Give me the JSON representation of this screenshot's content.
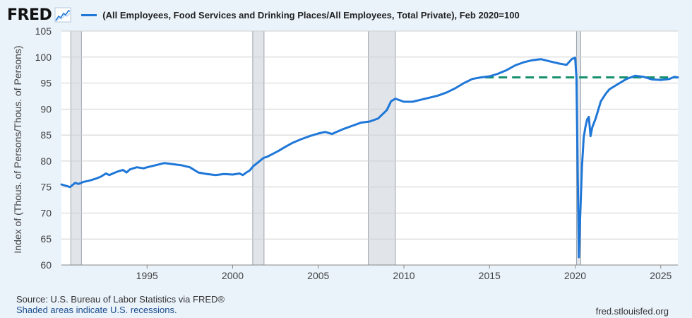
{
  "header": {
    "logo_text": "FRED",
    "logo_icon": "trend-line-icon",
    "legend_label": "(All Employees, Food Services and Drinking Places/All Employees, Total Private), Feb 2020=100"
  },
  "footer": {
    "source": "Source: U.S. Bureau of Labor Statistics via FRED®",
    "recession_note": "Shaded areas indicate U.S. recessions.",
    "site": "fred.stlouisfed.org"
  },
  "colors": {
    "line": "#1f77d8",
    "reference_line": "#16906d",
    "recession": "#e1e5ea",
    "recession_edge": "#9aa3ad",
    "grid": "#cfcfcf",
    "text": "#444444"
  },
  "chart_data": {
    "type": "line",
    "title": "",
    "ylabel": "Index of (Thous. of Persons/Thous. of Persons)",
    "xlabel": "",
    "xlim": [
      1990.0,
      2026.0
    ],
    "ylim": [
      60,
      105
    ],
    "yticks": [
      60,
      65,
      70,
      75,
      80,
      85,
      90,
      95,
      100,
      105
    ],
    "xticks": [
      1995,
      2000,
      2005,
      2010,
      2015,
      2020,
      2025
    ],
    "grid": true,
    "legend_position": "top",
    "recessions": [
      [
        1990.55,
        1991.17
      ],
      [
        2001.17,
        2001.83
      ],
      [
        2007.92,
        2009.5
      ],
      [
        2020.08,
        2020.33
      ]
    ],
    "reference_line": {
      "y": 96.1,
      "x_start": 2014.75,
      "x_end": 2026.0,
      "style": "dashed"
    },
    "series": [
      {
        "name": "(All Employees, Food Services and Drinking Places/All Employees, Total Private), Feb 2020=100",
        "x": [
          1990.0,
          1990.3,
          1990.5,
          1990.8,
          1991.0,
          1991.3,
          1991.6,
          1992.0,
          1992.3,
          1992.6,
          1992.8,
          1993.0,
          1993.3,
          1993.6,
          1993.8,
          1994.0,
          1994.4,
          1994.8,
          1995.0,
          1995.5,
          1996.0,
          1996.5,
          1997.0,
          1997.5,
          1998.0,
          1998.5,
          1999.0,
          1999.5,
          2000.0,
          2000.4,
          2000.6,
          2000.8,
          2001.0,
          2001.2,
          2001.5,
          2001.8,
          2002.0,
          2002.3,
          2002.7,
          2003.0,
          2003.5,
          2004.0,
          2004.5,
          2005.0,
          2005.4,
          2005.8,
          2006.0,
          2006.5,
          2007.0,
          2007.5,
          2008.0,
          2008.5,
          2009.0,
          2009.25,
          2009.5,
          2010.0,
          2010.5,
          2011.0,
          2011.5,
          2012.0,
          2012.5,
          2013.0,
          2013.5,
          2014.0,
          2014.5,
          2015.0,
          2015.5,
          2016.0,
          2016.5,
          2017.0,
          2017.5,
          2018.0,
          2018.5,
          2019.0,
          2019.5,
          2019.8,
          2020.0,
          2020.08,
          2020.15,
          2020.22,
          2020.3,
          2020.4,
          2020.5,
          2020.6,
          2020.7,
          2020.8,
          2020.9,
          2021.0,
          2021.2,
          2021.5,
          2021.8,
          2022.0,
          2022.5,
          2023.0,
          2023.5,
          2024.0,
          2024.5,
          2025.0,
          2025.5,
          2025.8,
          2026.0
        ],
        "values": [
          75.5,
          75.2,
          75.0,
          75.8,
          75.6,
          76.0,
          76.2,
          76.6,
          77.0,
          77.6,
          77.3,
          77.6,
          78.0,
          78.3,
          77.8,
          78.4,
          78.8,
          78.6,
          78.8,
          79.2,
          79.6,
          79.4,
          79.2,
          78.8,
          77.8,
          77.5,
          77.3,
          77.5,
          77.4,
          77.6,
          77.3,
          77.8,
          78.2,
          79.0,
          79.8,
          80.6,
          80.8,
          81.3,
          82.0,
          82.6,
          83.5,
          84.2,
          84.8,
          85.3,
          85.6,
          85.2,
          85.5,
          86.2,
          86.8,
          87.4,
          87.6,
          88.2,
          89.8,
          91.5,
          92.0,
          91.4,
          91.4,
          91.8,
          92.2,
          92.6,
          93.2,
          94.0,
          95.0,
          95.8,
          96.1,
          96.3,
          96.8,
          97.5,
          98.4,
          99.0,
          99.4,
          99.6,
          99.2,
          98.8,
          98.5,
          99.6,
          99.9,
          96.0,
          78.0,
          61.5,
          70.0,
          79.0,
          84.5,
          86.5,
          88.0,
          88.5,
          84.8,
          86.5,
          88.2,
          91.5,
          93.0,
          93.8,
          94.8,
          95.8,
          96.4,
          96.2,
          95.7,
          95.6,
          95.8,
          96.2,
          96.1
        ]
      }
    ]
  }
}
